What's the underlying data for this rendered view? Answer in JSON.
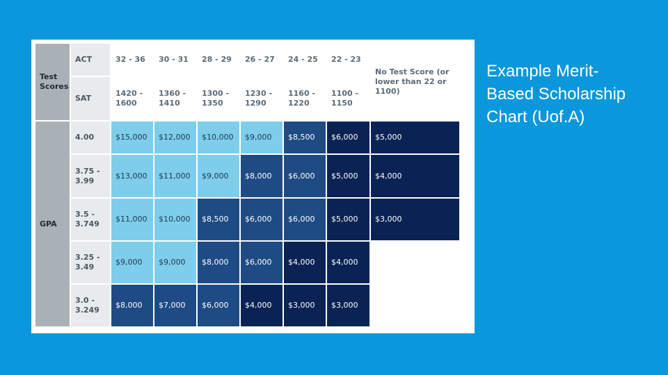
{
  "slide": {
    "title_line1": "Example Merit-",
    "title_line2": "Based Scholarship",
    "title_line3": "Chart (Uof.A)"
  },
  "table": {
    "test_scores_label": "Test Scores",
    "act_label": "ACT",
    "sat_label": "SAT",
    "gpa_label": "GPA",
    "act_ranges": [
      "32 - 36",
      "30 - 31",
      "28 - 29",
      "26 - 27",
      "24 - 25",
      "22 - 23"
    ],
    "sat_ranges": [
      "1420 - 1600",
      "1360 - 1410",
      "1300 - 1350",
      "1230 - 1290",
      "1160 - 1220",
      "1100 - 1150"
    ],
    "no_test_label": "No Test Score (or lower than 22 or 1100)",
    "gpa_ranges": [
      "4.00",
      "3.75 - 3.99",
      "3.5 - 3.749",
      "3.25 - 3.49",
      "3.0 - 3.249"
    ],
    "awards": [
      [
        "$15,000",
        "$12,000",
        "$10,000",
        "$9,000",
        "$8,500",
        "$6,000",
        "$5,000"
      ],
      [
        "$13,000",
        "$11,000",
        "$9,000",
        "$8,000",
        "$6,000",
        "$5,000",
        "$4,000"
      ],
      [
        "$11,000",
        "$10,000",
        "$8,500",
        "$6,000",
        "$6,000",
        "$5,000",
        "$3,000"
      ],
      [
        "$9,000",
        "$9,000",
        "$8,000",
        "$6,000",
        "$4,000",
        "$4,000",
        ""
      ],
      [
        "$8,000",
        "$7,000",
        "$6,000",
        "$4,000",
        "$3,000",
        "$3,000",
        ""
      ]
    ],
    "colors": {
      "light": "#7ecdea",
      "mid": "#1e4b83",
      "dark": "#0a2354"
    }
  }
}
